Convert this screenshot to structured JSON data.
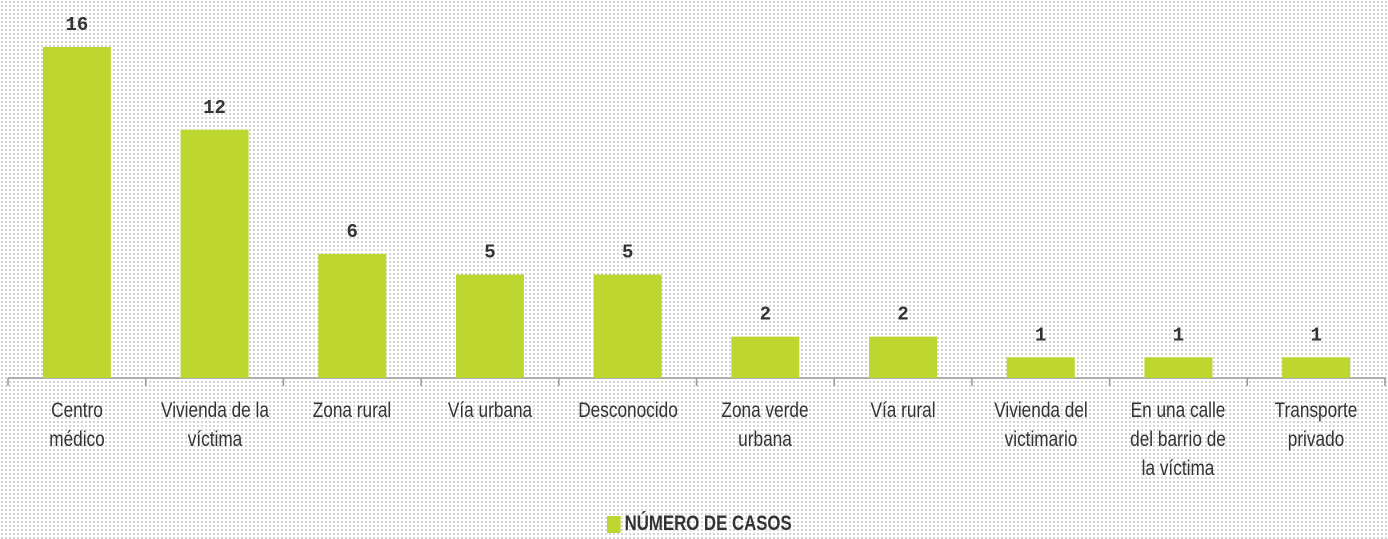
{
  "chart_data": {
    "type": "bar",
    "categories": [
      "Centro médico",
      "Vivienda de la víctima",
      "Zona rural",
      "Vía urbana",
      "Desconocido",
      "Zona verde urbana",
      "Vía rural",
      "Vivienda del victimario",
      "En una calle del barrio de la víctima",
      "Transporte privado"
    ],
    "series": [
      {
        "name": "NÚMERO DE CASOS",
        "color": "#bdd630",
        "values": [
          16,
          12,
          6,
          5,
          5,
          2,
          2,
          1,
          1,
          1
        ]
      }
    ],
    "legend": "bottom"
  }
}
